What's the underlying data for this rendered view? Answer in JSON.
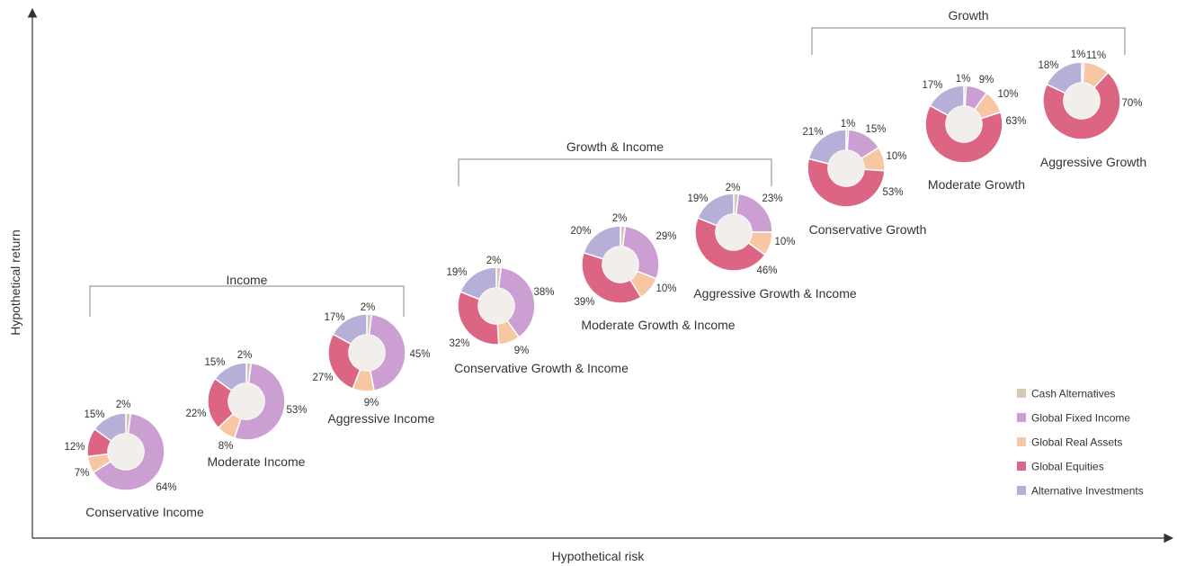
{
  "chart_data": {
    "type": "pie",
    "variant": "donut-scatter",
    "title": "",
    "xlabel": "Hypothetical risk",
    "ylabel": "Hypothetical return",
    "legend_position": "bottom-right",
    "colors": {
      "Cash Alternatives": "#d6c7b8",
      "Global Fixed Income": "#cc9fd2",
      "Global Real Assets": "#f7c7a4",
      "Global Equities": "#dc6584",
      "Alternative Investments": "#b6afd8"
    },
    "legend": [
      "Cash Alternatives",
      "Global Fixed Income",
      "Global Real Assets",
      "Global Equities",
      "Alternative Investments"
    ],
    "groups": [
      {
        "name": "Income",
        "members": [
          "Conservative Income",
          "Moderate Income",
          "Aggressive Income"
        ]
      },
      {
        "name": "Growth & Income",
        "members": [
          "Conservative Growth & Income",
          "Moderate Growth & Income",
          "Aggressive Growth & Income"
        ]
      },
      {
        "name": "Growth",
        "members": [
          "Conservative Growth",
          "Moderate Growth",
          "Aggressive Growth"
        ]
      }
    ],
    "portfolios": [
      {
        "name": "Conservative Income",
        "slices": [
          {
            "category": "Cash Alternatives",
            "value": 2,
            "label": "2%"
          },
          {
            "category": "Global Fixed Income",
            "value": 64,
            "label": "64%"
          },
          {
            "category": "Global Real Assets",
            "value": 7,
            "label": "7%"
          },
          {
            "category": "Global Equities",
            "value": 12,
            "label": "12%"
          },
          {
            "category": "Alternative Investments",
            "value": 15,
            "label": "15%"
          }
        ]
      },
      {
        "name": "Moderate Income",
        "slices": [
          {
            "category": "Cash Alternatives",
            "value": 2,
            "label": "2%"
          },
          {
            "category": "Global Fixed Income",
            "value": 53,
            "label": "53%"
          },
          {
            "category": "Global Real Assets",
            "value": 8,
            "label": "8%"
          },
          {
            "category": "Global Equities",
            "value": 22,
            "label": "22%"
          },
          {
            "category": "Alternative Investments",
            "value": 15,
            "label": "15%"
          }
        ]
      },
      {
        "name": "Aggressive Income",
        "slices": [
          {
            "category": "Cash Alternatives",
            "value": 2,
            "label": "2%"
          },
          {
            "category": "Global Fixed Income",
            "value": 45,
            "label": "45%"
          },
          {
            "category": "Global Real Assets",
            "value": 9,
            "label": "9%"
          },
          {
            "category": "Global Equities",
            "value": 27,
            "label": "27%"
          },
          {
            "category": "Alternative Investments",
            "value": 17,
            "label": "17%"
          }
        ]
      },
      {
        "name": "Conservative Growth & Income",
        "slices": [
          {
            "category": "Cash Alternatives",
            "value": 2,
            "label": "2%"
          },
          {
            "category": "Global Fixed Income",
            "value": 38,
            "label": "38%"
          },
          {
            "category": "Global Real Assets",
            "value": 9,
            "label": "9%"
          },
          {
            "category": "Global Equities",
            "value": 32,
            "label": "32%"
          },
          {
            "category": "Alternative Investments",
            "value": 19,
            "label": "19%"
          }
        ]
      },
      {
        "name": "Moderate Growth & Income",
        "slices": [
          {
            "category": "Cash Alternatives",
            "value": 2,
            "label": "2%"
          },
          {
            "category": "Global Fixed Income",
            "value": 29,
            "label": "29%"
          },
          {
            "category": "Global Real Assets",
            "value": 10,
            "label": "10%"
          },
          {
            "category": "Global Equities",
            "value": 39,
            "label": "39%"
          },
          {
            "category": "Alternative Investments",
            "value": 20,
            "label": "20%"
          }
        ]
      },
      {
        "name": "Aggressive Growth & Income",
        "slices": [
          {
            "category": "Cash Alternatives",
            "value": 2,
            "label": "2%"
          },
          {
            "category": "Global Fixed Income",
            "value": 23,
            "label": "23%"
          },
          {
            "category": "Global Real Assets",
            "value": 10,
            "label": "10%"
          },
          {
            "category": "Global Equities",
            "value": 46,
            "label": "46%"
          },
          {
            "category": "Alternative Investments",
            "value": 19,
            "label": "19%"
          }
        ]
      },
      {
        "name": "Conservative Growth",
        "slices": [
          {
            "category": "Cash Alternatives",
            "value": 1,
            "label": "1%"
          },
          {
            "category": "Global Fixed Income",
            "value": 15,
            "label": "15%"
          },
          {
            "category": "Global Real Assets",
            "value": 10,
            "label": "10%"
          },
          {
            "category": "Global Equities",
            "value": 53,
            "label": "53%"
          },
          {
            "category": "Alternative Investments",
            "value": 21,
            "label": "21%"
          }
        ]
      },
      {
        "name": "Moderate Growth",
        "slices": [
          {
            "category": "Cash Alternatives",
            "value": 1,
            "label": "1%"
          },
          {
            "category": "Global Fixed Income",
            "value": 9,
            "label": "9%"
          },
          {
            "category": "Global Real Assets",
            "value": 10,
            "label": "10%"
          },
          {
            "category": "Global Equities",
            "value": 63,
            "label": "63%"
          },
          {
            "category": "Alternative Investments",
            "value": 17,
            "label": "17%"
          }
        ]
      },
      {
        "name": "Aggressive Growth",
        "slices": [
          {
            "category": "Cash Alternatives",
            "value": 1,
            "label": "1%"
          },
          {
            "category": "Global Fixed Income",
            "value": 0,
            "label": ""
          },
          {
            "category": "Global Real Assets",
            "value": 11,
            "label": "11%"
          },
          {
            "category": "Global Equities",
            "value": 70,
            "label": "70%"
          },
          {
            "category": "Alternative Investments",
            "value": 18,
            "label": "18%"
          }
        ]
      }
    ]
  }
}
